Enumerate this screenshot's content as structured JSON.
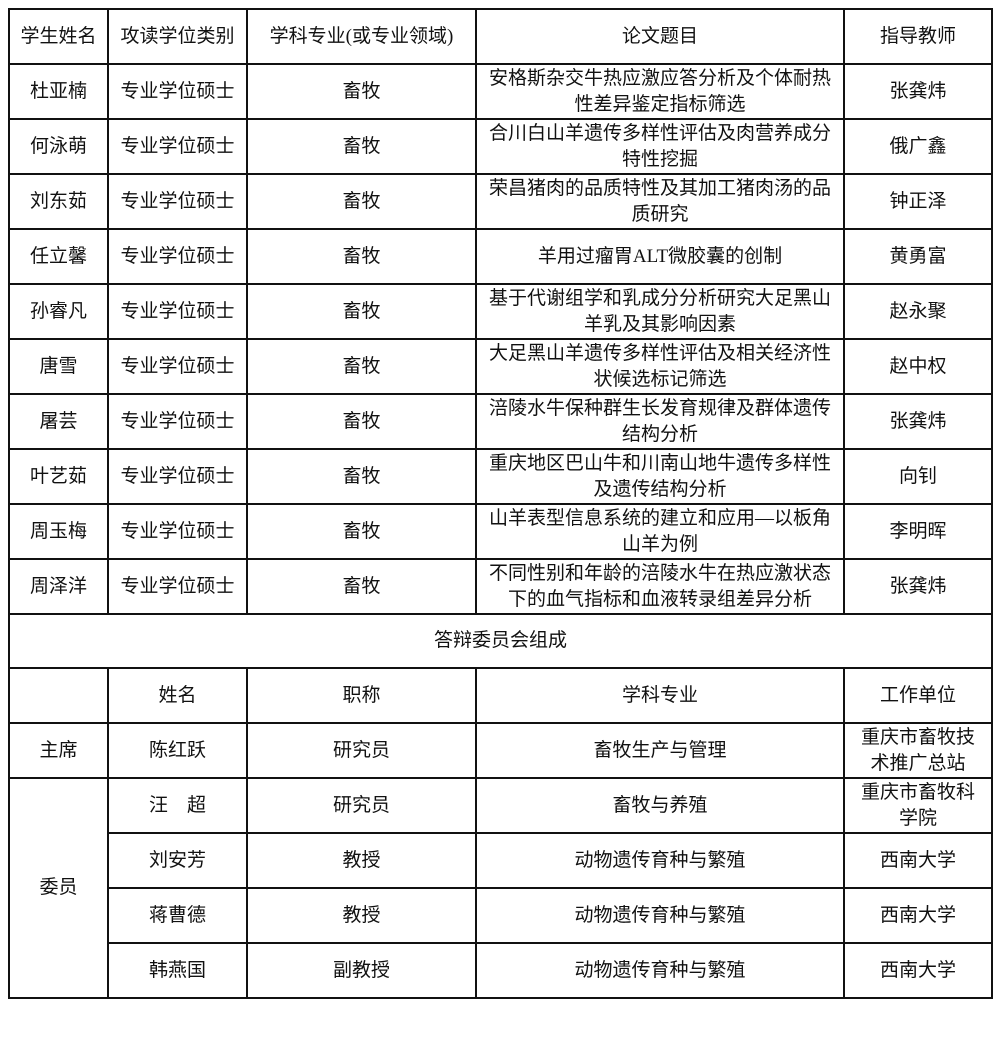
{
  "students": {
    "headers": [
      "学生姓名",
      "攻读学位类别",
      "学科专业(或专业领域)",
      "论文题目",
      "指导教师"
    ],
    "rows": [
      {
        "name": "杜亚楠",
        "degree": "专业学位硕士",
        "major": "畜牧",
        "title": "安格斯杂交牛热应激应答分析及个体耐热性差异鉴定指标筛选",
        "advisor": "张龚炜"
      },
      {
        "name": "何泳萌",
        "degree": "专业学位硕士",
        "major": "畜牧",
        "title": "合川白山羊遗传多样性评估及肉营养成分特性挖掘",
        "advisor": "俄广鑫"
      },
      {
        "name": "刘东茹",
        "degree": "专业学位硕士",
        "major": "畜牧",
        "title": "荣昌猪肉的品质特性及其加工猪肉汤的品质研究",
        "advisor": "钟正泽"
      },
      {
        "name": "任立馨",
        "degree": "专业学位硕士",
        "major": "畜牧",
        "title": "羊用过瘤胃ALT微胶囊的创制",
        "advisor": "黄勇富"
      },
      {
        "name": "孙睿凡",
        "degree": "专业学位硕士",
        "major": "畜牧",
        "title": "基于代谢组学和乳成分分析研究大足黑山羊乳及其影响因素",
        "advisor": "赵永聚"
      },
      {
        "name": "唐雪",
        "degree": "专业学位硕士",
        "major": "畜牧",
        "title": "大足黑山羊遗传多样性评估及相关经济性状候选标记筛选",
        "advisor": "赵中权"
      },
      {
        "name": "屠芸",
        "degree": "专业学位硕士",
        "major": "畜牧",
        "title": "涪陵水牛保种群生长发育规律及群体遗传结构分析",
        "advisor": "张龚炜"
      },
      {
        "name": "叶艺茹",
        "degree": "专业学位硕士",
        "major": "畜牧",
        "title": "重庆地区巴山牛和川南山地牛遗传多样性及遗传结构分析",
        "advisor": "向钊"
      },
      {
        "name": "周玉梅",
        "degree": "专业学位硕士",
        "major": "畜牧",
        "title": "山羊表型信息系统的建立和应用—以板角山羊为例",
        "advisor": "李明晖"
      },
      {
        "name": "周泽洋",
        "degree": "专业学位硕士",
        "major": "畜牧",
        "title": "不同性别和年龄的涪陵水牛在热应激状态下的血气指标和血液转录组差异分析",
        "advisor": "张龚炜"
      }
    ]
  },
  "committee": {
    "section_title": "答辩委员会组成",
    "headers": [
      "",
      "姓名",
      "职称",
      "学科专业",
      "工作单位"
    ],
    "chair_label": "主席",
    "member_label": "委员",
    "chair": {
      "name": "陈红跃",
      "rank": "研究员",
      "major": "畜牧生产与管理",
      "unit": "重庆市畜牧技术推广总站"
    },
    "members": [
      {
        "name": "汪　超",
        "rank": "研究员",
        "major": "畜牧与养殖",
        "unit": "重庆市畜牧科学院"
      },
      {
        "name": "刘安芳",
        "rank": "教授",
        "major": "动物遗传育种与繁殖",
        "unit": "西南大学"
      },
      {
        "name": "蒋曹德",
        "rank": "教授",
        "major": "动物遗传育种与繁殖",
        "unit": "西南大学"
      },
      {
        "name": "韩燕国",
        "rank": "副教授",
        "major": "动物遗传育种与繁殖",
        "unit": "西南大学"
      }
    ]
  }
}
